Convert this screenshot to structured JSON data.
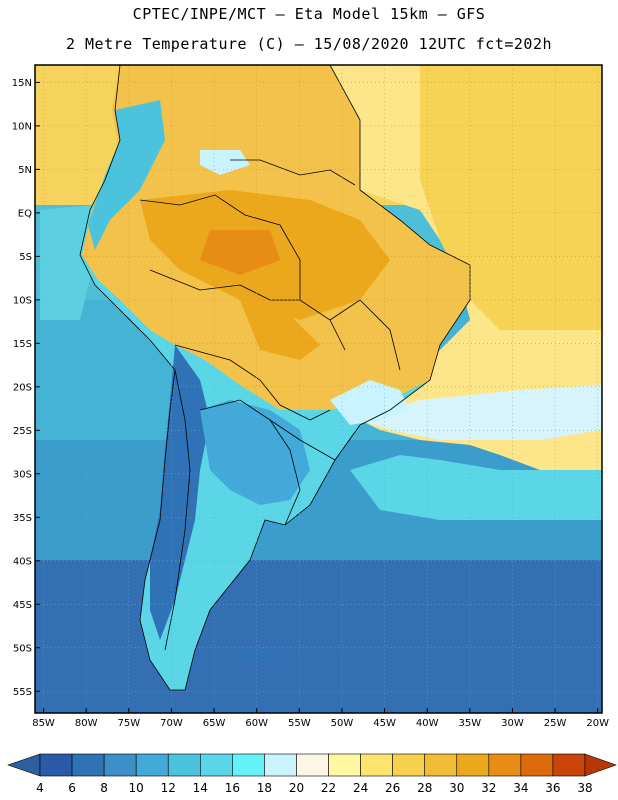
{
  "header": {
    "line1": "CPTEC/INPE/MCT –   Eta Model 15km – GFS",
    "line2": "2 Metre Temperature (C) – 15/08/2020 12UTC fct=202h"
  },
  "map": {
    "lon_range": [
      -86,
      -19.5
    ],
    "lat_range": [
      -57.5,
      17
    ],
    "lat_ticks": [
      "15N",
      "10N",
      "5N",
      "EQ",
      "5S",
      "10S",
      "15S",
      "20S",
      "25S",
      "30S",
      "35S",
      "40S",
      "45S",
      "50S",
      "55S"
    ],
    "lat_values": [
      15,
      10,
      5,
      0,
      -5,
      -10,
      -15,
      -20,
      -25,
      -30,
      -35,
      -40,
      -45,
      -50,
      -55
    ],
    "lon_ticks": [
      "85W",
      "80W",
      "75W",
      "70W",
      "65W",
      "60W",
      "55W",
      "50W",
      "45W",
      "40W",
      "35W",
      "30W",
      "25W",
      "20W"
    ],
    "lon_values": [
      -85,
      -80,
      -75,
      -70,
      -65,
      -60,
      -55,
      -50,
      -45,
      -40,
      -35,
      -30,
      -25,
      -20
    ],
    "grid": "dotted"
  },
  "colorbar": {
    "labels": [
      "4",
      "6",
      "8",
      "10",
      "12",
      "14",
      "16",
      "18",
      "20",
      "22",
      "24",
      "26",
      "28",
      "30",
      "32",
      "34",
      "36",
      "38"
    ],
    "colors": [
      "#2b5aa8",
      "#2f72b6",
      "#3d8fc7",
      "#43a9d8",
      "#4cc3dc",
      "#5ad6e6",
      "#63f2f8",
      "#c9f4ff",
      "#fdf6e4",
      "#fff7a1",
      "#fde46e",
      "#f7d14e",
      "#f0bd35",
      "#eba81d",
      "#e78c15",
      "#dc6b0a",
      "#c94408"
    ],
    "under_color": "#2e5f9f",
    "over_color": "#b83707"
  }
}
